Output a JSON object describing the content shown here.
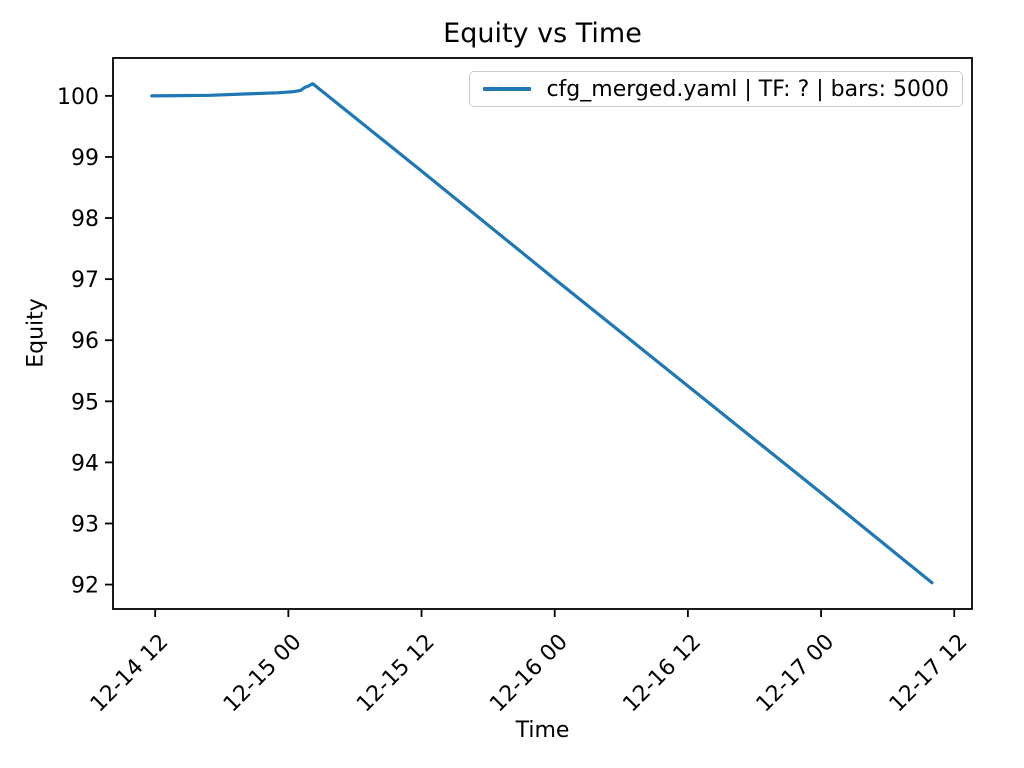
{
  "chart_data": {
    "type": "line",
    "title": "Equity vs Time",
    "xlabel": "Time",
    "ylabel": "Equity",
    "grid": false,
    "legend_position": "upper right",
    "axis_color": "#000000",
    "x_unit": "hours since 12-14 00:00",
    "xlim_hours": [
      8.2,
      85.6
    ],
    "ylim": [
      91.6,
      100.62
    ],
    "x_ticks": [
      {
        "hour": 12,
        "label": "12-14 12"
      },
      {
        "hour": 24,
        "label": "12-15 00"
      },
      {
        "hour": 36,
        "label": "12-15 12"
      },
      {
        "hour": 48,
        "label": "12-16 00"
      },
      {
        "hour": 60,
        "label": "12-16 12"
      },
      {
        "hour": 72,
        "label": "12-17 00"
      },
      {
        "hour": 84,
        "label": "12-17 12"
      }
    ],
    "y_ticks": [
      92,
      93,
      94,
      95,
      96,
      97,
      98,
      99,
      100
    ],
    "series": [
      {
        "name": "cfg_merged.yaml | TF: ? | bars: 5000",
        "color": "#1f77b4",
        "line_width": 3.2,
        "points": [
          [
            11.7,
            100.0
          ],
          [
            14.0,
            100.005
          ],
          [
            17.0,
            100.01
          ],
          [
            20.0,
            100.03
          ],
          [
            23.0,
            100.05
          ],
          [
            24.5,
            100.07
          ],
          [
            25.1,
            100.09
          ],
          [
            25.5,
            100.14
          ],
          [
            25.8,
            100.16
          ],
          [
            26.2,
            100.2
          ],
          [
            36.0,
            98.77
          ],
          [
            48.0,
            97.0
          ],
          [
            60.0,
            95.25
          ],
          [
            72.0,
            93.5
          ],
          [
            82.0,
            92.03
          ]
        ]
      }
    ]
  }
}
